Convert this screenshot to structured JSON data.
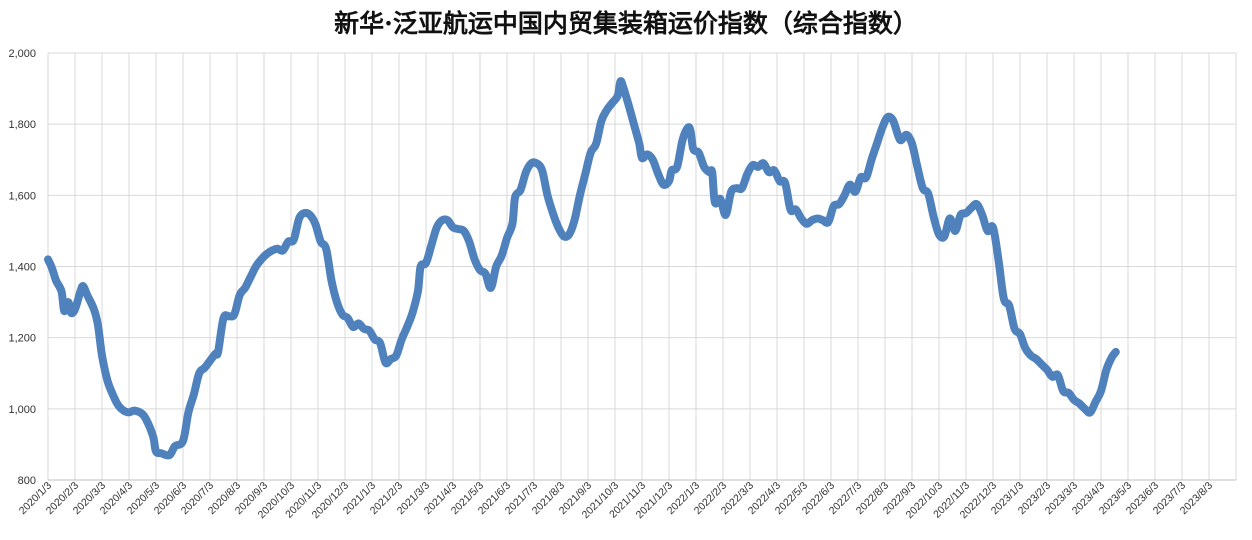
{
  "chart_data": {
    "type": "line",
    "title": "新华·泛亚航运中国内贸集装箱运价指数（综合指数）",
    "xlabel": "",
    "ylabel": "",
    "ylim": [
      800,
      2000
    ],
    "yticks": [
      "800",
      "1,000",
      "1,200",
      "1,400",
      "1,600",
      "1,800",
      "2,000"
    ],
    "grid": true,
    "legend": "none",
    "color": "#4f81bd",
    "x": [
      "2020/1/3",
      "2020/2/3",
      "2020/3/3",
      "2020/4/3",
      "2020/5/3",
      "2020/6/3",
      "2020/7/3",
      "2020/8/3",
      "2020/9/3",
      "2020/10/3",
      "2020/11/3",
      "2020/12/3",
      "2021/1/3",
      "2021/2/3",
      "2021/3/3",
      "2021/4/3",
      "2021/5/3",
      "2021/6/3",
      "2021/7/3",
      "2021/8/3",
      "2021/9/3",
      "2021/10/3",
      "2021/11/3",
      "2021/12/3",
      "2022/1/3",
      "2022/2/3",
      "2022/3/3",
      "2022/4/3",
      "2022/5/3",
      "2022/6/3",
      "2022/7/3",
      "2022/8/3",
      "2022/9/3",
      "2022/10/3",
      "2022/11/3",
      "2022/12/3",
      "2023/1/3",
      "2023/2/3",
      "2023/3/3",
      "2023/4/3",
      "2023/5/3",
      "2023/6/3",
      "2023/7/3",
      "2023/8/3"
    ],
    "series": [
      {
        "name": "",
        "points": [
          [
            0,
            1420
          ],
          [
            0.15,
            1395
          ],
          [
            0.3,
            1360
          ],
          [
            0.5,
            1330
          ],
          [
            0.6,
            1275
          ],
          [
            0.75,
            1300
          ],
          [
            0.85,
            1270
          ],
          [
            1.0,
            1280
          ],
          [
            1.2,
            1330
          ],
          [
            1.3,
            1345
          ],
          [
            1.45,
            1320
          ],
          [
            1.7,
            1280
          ],
          [
            1.85,
            1235
          ],
          [
            2.0,
            1150
          ],
          [
            2.2,
            1080
          ],
          [
            2.4,
            1040
          ],
          [
            2.6,
            1010
          ],
          [
            2.8,
            995
          ],
          [
            3.0,
            990
          ],
          [
            3.2,
            995
          ],
          [
            3.5,
            985
          ],
          [
            3.7,
            960
          ],
          [
            3.9,
            920
          ],
          [
            4.0,
            880
          ],
          [
            4.2,
            875
          ],
          [
            4.5,
            870
          ],
          [
            4.7,
            895
          ],
          [
            5.0,
            910
          ],
          [
            5.2,
            990
          ],
          [
            5.4,
            1040
          ],
          [
            5.6,
            1100
          ],
          [
            5.8,
            1115
          ],
          [
            6.0,
            1135
          ],
          [
            6.2,
            1155
          ],
          [
            6.3,
            1160
          ],
          [
            6.5,
            1255
          ],
          [
            6.7,
            1260
          ],
          [
            6.9,
            1265
          ],
          [
            7.1,
            1320
          ],
          [
            7.3,
            1340
          ],
          [
            7.5,
            1370
          ],
          [
            7.7,
            1400
          ],
          [
            7.9,
            1420
          ],
          [
            8.1,
            1435
          ],
          [
            8.3,
            1445
          ],
          [
            8.5,
            1450
          ],
          [
            8.7,
            1445
          ],
          [
            8.9,
            1470
          ],
          [
            9.1,
            1475
          ],
          [
            9.3,
            1535
          ],
          [
            9.5,
            1550
          ],
          [
            9.7,
            1545
          ],
          [
            9.9,
            1520
          ],
          [
            10.1,
            1470
          ],
          [
            10.3,
            1450
          ],
          [
            10.5,
            1360
          ],
          [
            10.7,
            1300
          ],
          [
            10.9,
            1265
          ],
          [
            11.1,
            1255
          ],
          [
            11.3,
            1230
          ],
          [
            11.5,
            1240
          ],
          [
            11.7,
            1225
          ],
          [
            11.9,
            1220
          ],
          [
            12.1,
            1195
          ],
          [
            12.3,
            1185
          ],
          [
            12.5,
            1130
          ],
          [
            12.7,
            1140
          ],
          [
            12.9,
            1150
          ],
          [
            13.1,
            1195
          ],
          [
            13.3,
            1230
          ],
          [
            13.5,
            1270
          ],
          [
            13.7,
            1330
          ],
          [
            13.8,
            1400
          ],
          [
            14.0,
            1410
          ],
          [
            14.2,
            1460
          ],
          [
            14.4,
            1510
          ],
          [
            14.6,
            1530
          ],
          [
            14.8,
            1530
          ],
          [
            15.0,
            1510
          ],
          [
            15.2,
            1505
          ],
          [
            15.4,
            1500
          ],
          [
            15.6,
            1470
          ],
          [
            15.8,
            1420
          ],
          [
            16.0,
            1390
          ],
          [
            16.2,
            1380
          ],
          [
            16.4,
            1340
          ],
          [
            16.6,
            1400
          ],
          [
            16.8,
            1430
          ],
          [
            17.0,
            1480
          ],
          [
            17.2,
            1520
          ],
          [
            17.3,
            1595
          ],
          [
            17.5,
            1615
          ],
          [
            17.7,
            1665
          ],
          [
            17.9,
            1690
          ],
          [
            18.1,
            1690
          ],
          [
            18.3,
            1670
          ],
          [
            18.5,
            1600
          ],
          [
            18.7,
            1550
          ],
          [
            18.9,
            1510
          ],
          [
            19.1,
            1485
          ],
          [
            19.3,
            1490
          ],
          [
            19.5,
            1530
          ],
          [
            19.7,
            1600
          ],
          [
            19.9,
            1660
          ],
          [
            20.1,
            1720
          ],
          [
            20.3,
            1745
          ],
          [
            20.5,
            1810
          ],
          [
            20.7,
            1840
          ],
          [
            20.9,
            1860
          ],
          [
            21.1,
            1880
          ],
          [
            21.2,
            1920
          ],
          [
            21.3,
            1905
          ],
          [
            21.5,
            1855
          ],
          [
            21.7,
            1800
          ],
          [
            21.9,
            1745
          ],
          [
            22.0,
            1705
          ],
          [
            22.2,
            1715
          ],
          [
            22.4,
            1700
          ],
          [
            22.6,
            1660
          ],
          [
            22.8,
            1630
          ],
          [
            23.0,
            1640
          ],
          [
            23.1,
            1670
          ],
          [
            23.3,
            1680
          ],
          [
            23.5,
            1755
          ],
          [
            23.7,
            1790
          ],
          [
            23.8,
            1780
          ],
          [
            23.9,
            1730
          ],
          [
            24.1,
            1720
          ],
          [
            24.3,
            1680
          ],
          [
            24.5,
            1665
          ],
          [
            24.6,
            1665
          ],
          [
            24.7,
            1580
          ],
          [
            24.9,
            1590
          ],
          [
            25.1,
            1545
          ],
          [
            25.3,
            1610
          ],
          [
            25.5,
            1620
          ],
          [
            25.7,
            1620
          ],
          [
            25.9,
            1660
          ],
          [
            26.1,
            1685
          ],
          [
            26.3,
            1680
          ],
          [
            26.5,
            1690
          ],
          [
            26.7,
            1665
          ],
          [
            26.9,
            1670
          ],
          [
            27.1,
            1640
          ],
          [
            27.3,
            1635
          ],
          [
            27.5,
            1560
          ],
          [
            27.7,
            1560
          ],
          [
            27.9,
            1535
          ],
          [
            28.1,
            1520
          ],
          [
            28.3,
            1530
          ],
          [
            28.5,
            1535
          ],
          [
            28.7,
            1530
          ],
          [
            28.9,
            1525
          ],
          [
            29.1,
            1570
          ],
          [
            29.3,
            1575
          ],
          [
            29.5,
            1600
          ],
          [
            29.7,
            1630
          ],
          [
            29.9,
            1610
          ],
          [
            30.1,
            1650
          ],
          [
            30.3,
            1650
          ],
          [
            30.5,
            1700
          ],
          [
            30.7,
            1745
          ],
          [
            30.9,
            1790
          ],
          [
            31.1,
            1820
          ],
          [
            31.3,
            1810
          ],
          [
            31.5,
            1765
          ],
          [
            31.6,
            1755
          ],
          [
            31.8,
            1770
          ],
          [
            32.0,
            1745
          ],
          [
            32.2,
            1680
          ],
          [
            32.4,
            1620
          ],
          [
            32.6,
            1605
          ],
          [
            32.8,
            1540
          ],
          [
            33.0,
            1490
          ],
          [
            33.2,
            1485
          ],
          [
            33.4,
            1535
          ],
          [
            33.6,
            1500
          ],
          [
            33.8,
            1545
          ],
          [
            34.0,
            1550
          ],
          [
            34.2,
            1565
          ],
          [
            34.4,
            1575
          ],
          [
            34.6,
            1545
          ],
          [
            34.8,
            1500
          ],
          [
            35.0,
            1510
          ],
          [
            35.2,
            1420
          ],
          [
            35.4,
            1310
          ],
          [
            35.6,
            1290
          ],
          [
            35.8,
            1225
          ],
          [
            36.0,
            1210
          ],
          [
            36.2,
            1170
          ],
          [
            36.4,
            1150
          ],
          [
            36.6,
            1140
          ],
          [
            36.8,
            1125
          ],
          [
            37.0,
            1110
          ],
          [
            37.2,
            1090
          ],
          [
            37.4,
            1095
          ],
          [
            37.6,
            1050
          ],
          [
            37.8,
            1045
          ],
          [
            38.0,
            1025
          ],
          [
            38.2,
            1015
          ],
          [
            38.4,
            1000
          ],
          [
            38.6,
            990
          ],
          [
            38.8,
            1020
          ],
          [
            39.0,
            1050
          ],
          [
            39.2,
            1110
          ],
          [
            39.4,
            1145
          ],
          [
            39.55,
            1160
          ]
        ]
      }
    ]
  }
}
